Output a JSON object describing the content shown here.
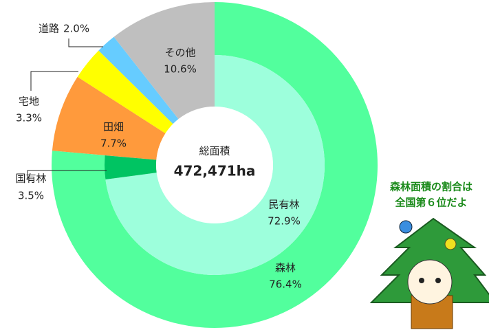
{
  "chart_data": {
    "type": "donut",
    "outer": {
      "categories": [
        "森林",
        "田畑",
        "宅地",
        "道路",
        "その他"
      ],
      "values": [
        76.4,
        7.7,
        3.3,
        2.0,
        10.6
      ],
      "value_labels": [
        "76.4%",
        "7.7%",
        "3.3%",
        "2.0%",
        "10.6%"
      ],
      "colors": [
        "#52ff9d",
        "#ff9a3c",
        "#ffff00",
        "#66ccff",
        "#bfbfbf"
      ]
    },
    "inner": {
      "categories": [
        "民有林",
        "国有林"
      ],
      "values": [
        72.9,
        3.5
      ],
      "value_labels": [
        "72.9%",
        "3.5%"
      ],
      "colors": [
        "#9dffdc",
        "#00c462"
      ]
    },
    "center_label": "総面積",
    "center_value": "472,471ha",
    "note": [
      "森林面積の割合は",
      "全国第６位だよ"
    ]
  }
}
